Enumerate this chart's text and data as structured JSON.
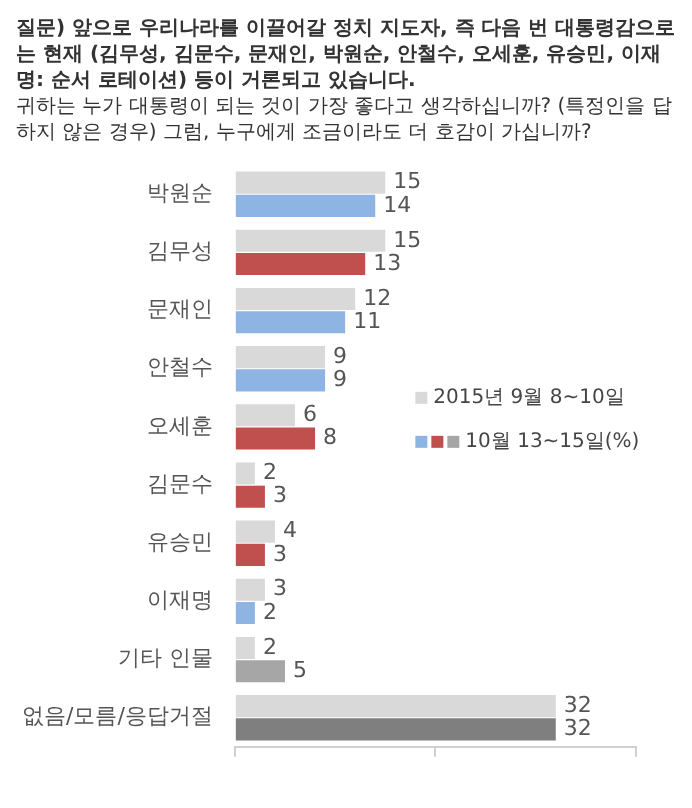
{
  "chart_data": {
    "type": "bar",
    "orientation": "horizontal",
    "title": "질문) 앞으로 우리나라를 이끌어갈 정치 지도자, 즉 다음 번 대통령감으로는 현재 (김무성, 김문수, 문재인, 박원순, 안철수, 오세훈, 유승민, 이재명: 순서 로테이션) 등이 거론되고 있습니다.",
    "subtitle": "귀하는 누가 대통령이 되는 것이 가장 좋다고 생각하십니까? (특정인을 답하지 않은 경우) 그럼, 누구에게 조금이라도 더 호감이 가십니까?",
    "categories": [
      "박원순",
      "김무성",
      "문재인",
      "안철수",
      "오세훈",
      "김문수",
      "유승민",
      "이재명",
      "기타 인물",
      "없음/모름/응답거절"
    ],
    "series": [
      {
        "name": "2015년 9월 8~10일",
        "color": "#d9d9d9",
        "values": [
          15,
          15,
          12,
          9,
          6,
          2,
          4,
          3,
          2,
          32
        ]
      },
      {
        "name": "10월 13~15일(%)",
        "colors": [
          "#8eb4e3",
          "#c0504d",
          "#8eb4e3",
          "#8eb4e3",
          "#c0504d",
          "#c0504d",
          "#c0504d",
          "#8eb4e3",
          "#a6a6a6",
          "#7f7f7f"
        ],
        "values": [
          14,
          13,
          11,
          9,
          8,
          3,
          3,
          2,
          5,
          32
        ]
      }
    ],
    "xlim": [
      0,
      40
    ],
    "xticks": [
      {
        "value": 0,
        "label": null
      },
      {
        "value": 20,
        "label": null
      },
      {
        "value": 40,
        "label": null
      }
    ],
    "tick_labels": "y",
    "grid": false,
    "legend": "right",
    "data_labels": true
  }
}
